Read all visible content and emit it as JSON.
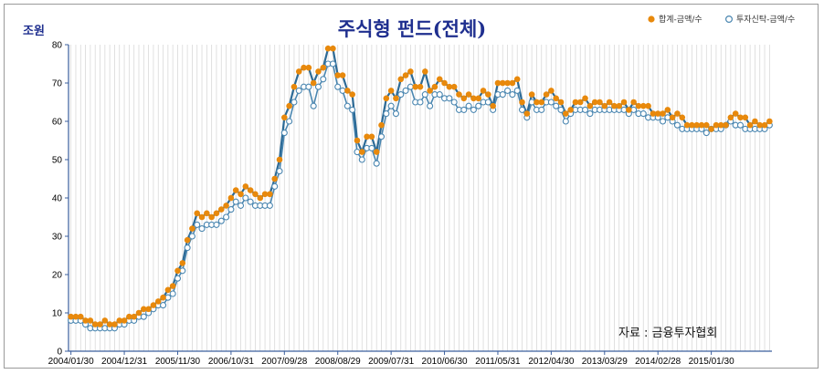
{
  "chart_data": {
    "type": "line",
    "title": "주식형 펀드(전체)",
    "unit_label": "조원",
    "source_note": "자료 : 금융투자협회",
    "ylim": [
      0,
      80
    ],
    "y_ticks": [
      0,
      10,
      20,
      30,
      40,
      50,
      60,
      70,
      80
    ],
    "x_tick_labels": [
      "2004/01/30",
      "2004/12/31",
      "2005/11/30",
      "2006/10/31",
      "2007/09/28",
      "2008/08/29",
      "2009/07/31",
      "2010/06/30",
      "2011/05/31",
      "2012/04/30",
      "2013/03/29",
      "2014/02/28",
      "2015/01/30"
    ],
    "grid": true,
    "legend_position": "top-right",
    "series": [
      {
        "name": "합계-금액/수",
        "color": "#e8890c",
        "line_color": "#2c6a96",
        "marker": "filled",
        "values": [
          9,
          9,
          9,
          8,
          8,
          7,
          7,
          8,
          7,
          7,
          8,
          8,
          9,
          9,
          10,
          11,
          11,
          12,
          13,
          14,
          16,
          17,
          21,
          23,
          29,
          32,
          36,
          35,
          36,
          35,
          36,
          37,
          38,
          40,
          42,
          41,
          43,
          42,
          41,
          40,
          41,
          41,
          45,
          50,
          61,
          64,
          69,
          73,
          74,
          74,
          70,
          73,
          74,
          79,
          79,
          72,
          72,
          68,
          67,
          55,
          52,
          56,
          56,
          52,
          59,
          66,
          68,
          66,
          71,
          72,
          73,
          69,
          69,
          73,
          68,
          69,
          71,
          70,
          69,
          69,
          67,
          66,
          67,
          66,
          66,
          68,
          67,
          64,
          70,
          70,
          70,
          70,
          71,
          65,
          62,
          67,
          65,
          65,
          67,
          68,
          66,
          65,
          62,
          63,
          65,
          65,
          66,
          64,
          65,
          65,
          64,
          65,
          64,
          64,
          65,
          63,
          65,
          64,
          64,
          64,
          62,
          62,
          62,
          63,
          61,
          62,
          61,
          59,
          59,
          59,
          59,
          59,
          58,
          59,
          59,
          59,
          61,
          62,
          61,
          61,
          59,
          60,
          59,
          59,
          60
        ]
      },
      {
        "name": "투자신탁-금액/수",
        "color": "#ffffff",
        "stroke": "#4a86b0",
        "marker": "hollow",
        "values": [
          8,
          8,
          8,
          7,
          6,
          6,
          6,
          6,
          6,
          6,
          7,
          7,
          8,
          8,
          9,
          9,
          10,
          11,
          12,
          12,
          14,
          15,
          19,
          21,
          27,
          30,
          33,
          32,
          33,
          33,
          33,
          34,
          35,
          37,
          39,
          38,
          40,
          39,
          38,
          38,
          38,
          38,
          43,
          47,
          57,
          60,
          65,
          68,
          69,
          69,
          64,
          69,
          71,
          75,
          75,
          69,
          68,
          64,
          63,
          52,
          50,
          53,
          53,
          49,
          56,
          62,
          64,
          62,
          67,
          68,
          69,
          65,
          65,
          67,
          64,
          67,
          67,
          66,
          66,
          65,
          63,
          63,
          64,
          63,
          64,
          65,
          65,
          63,
          67,
          67,
          68,
          67,
          68,
          63,
          61,
          65,
          63,
          63,
          65,
          65,
          64,
          63,
          60,
          62,
          63,
          63,
          63,
          62,
          63,
          63,
          63,
          63,
          63,
          63,
          63,
          62,
          63,
          62,
          62,
          61,
          61,
          61,
          60,
          61,
          60,
          59,
          58,
          58,
          58,
          58,
          58,
          57,
          58,
          58,
          58,
          59,
          60,
          59,
          59,
          58,
          58,
          58,
          58,
          58,
          59
        ]
      }
    ]
  }
}
